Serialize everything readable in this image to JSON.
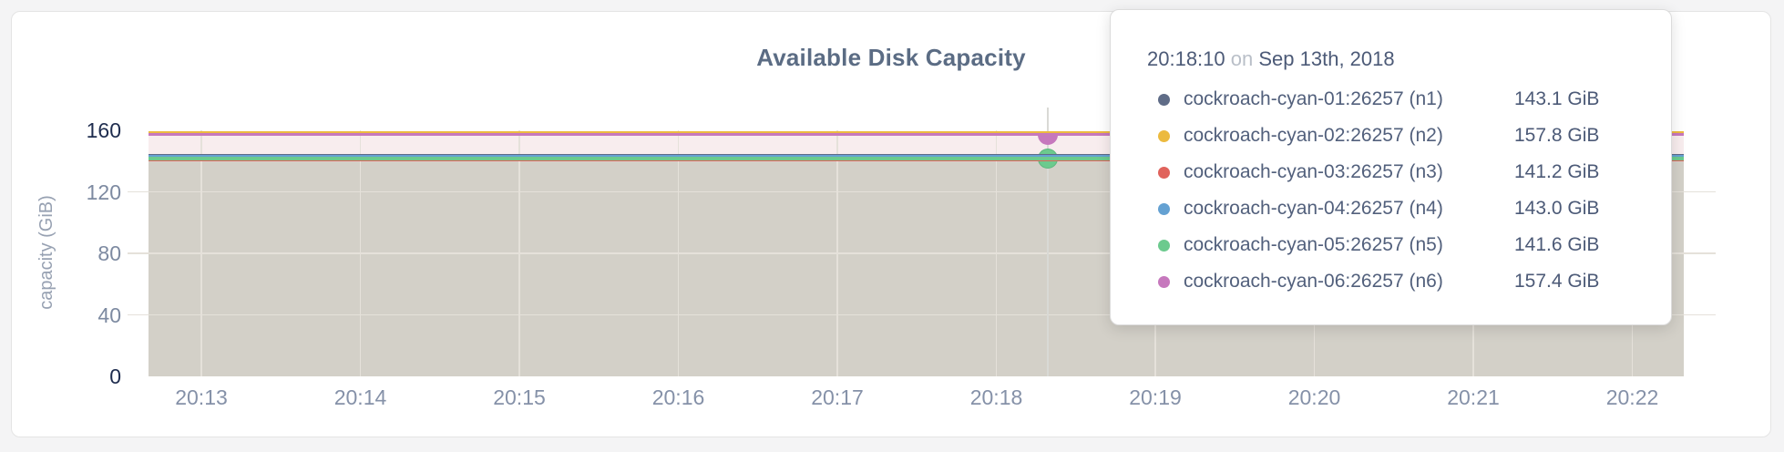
{
  "page": {
    "background_color": "#f4f4f5",
    "card_color": "#ffffff"
  },
  "chart_data": {
    "type": "area",
    "title": "Available Disk Capacity",
    "ylabel": "capacity (GiB)",
    "xlabel": "",
    "ylim": [
      0,
      160
    ],
    "y_ticks": [
      0,
      40,
      80,
      120,
      160
    ],
    "x_ticks": [
      "20:13",
      "20:14",
      "20:15",
      "20:16",
      "20:17",
      "20:18",
      "20:19",
      "20:20",
      "20:21",
      "20:22"
    ],
    "grid": true,
    "legend_position": "tooltip",
    "series": [
      {
        "name": "cockroach-cyan-01:26257 (n1)",
        "color": "#5f6c87",
        "value": 143.1,
        "value_label": "143.1 GiB"
      },
      {
        "name": "cockroach-cyan-02:26257 (n2)",
        "color": "#ecba3f",
        "value": 157.8,
        "value_label": "157.8 GiB"
      },
      {
        "name": "cockroach-cyan-03:26257 (n3)",
        "color": "#e0635c",
        "value": 141.2,
        "value_label": "141.2 GiB"
      },
      {
        "name": "cockroach-cyan-04:26257 (n4)",
        "color": "#64a1d2",
        "value": 143.0,
        "value_label": "143.0 GiB"
      },
      {
        "name": "cockroach-cyan-05:26257 (n5)",
        "color": "#6cca8e",
        "value": 141.6,
        "value_label": "141.6 GiB"
      },
      {
        "name": "cockroach-cyan-06:26257 (n6)",
        "color": "#c678bd",
        "value": 157.4,
        "value_label": "157.4 GiB"
      }
    ],
    "hover": {
      "time": "20:18:10",
      "markers": [
        {
          "series": 5,
          "shape": "half-circle"
        },
        {
          "series": 4,
          "shape": "circle"
        }
      ]
    }
  },
  "tooltip": {
    "time": "20:18:10",
    "connector": "on",
    "date": "Sep 13th, 2018"
  },
  "colors": {
    "fill_gray": "#d3d0c8",
    "fill_pink": "#f8edee",
    "grid_over_fill": "#e5e1da",
    "guideline": "#d9d9d5",
    "tick_dark": "#1e2c4e",
    "tick_light": "#7d8aa1"
  }
}
